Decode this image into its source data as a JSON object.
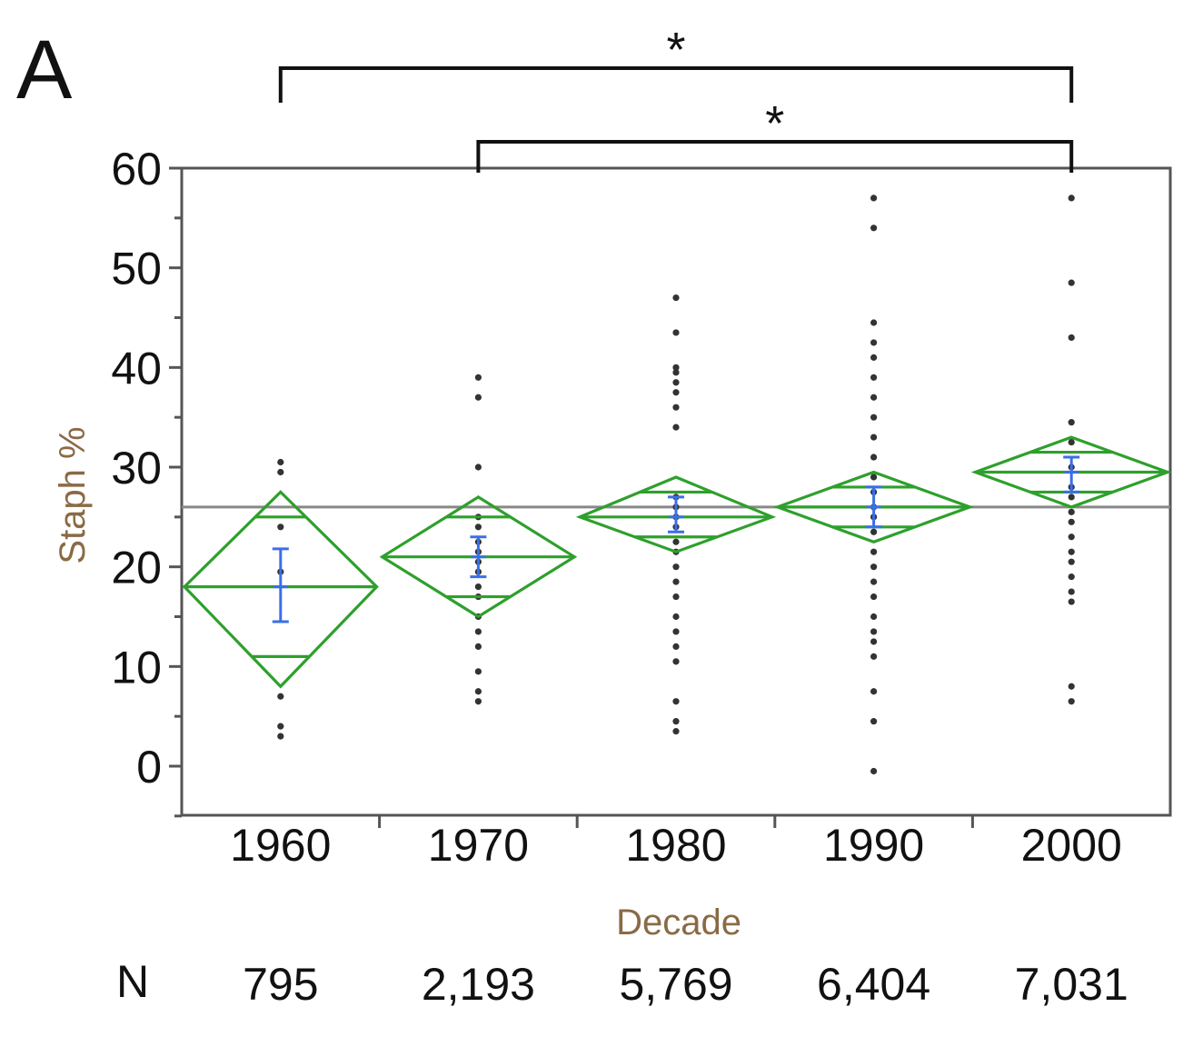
{
  "panel_label": "A",
  "colors": {
    "diamond": "#2ea02c",
    "error_bar": "#3b6fe8",
    "point": "#333333",
    "grand_mean": "#888888",
    "frame": "#555555",
    "axis_title": "#8a6a45"
  },
  "chart_data": {
    "type": "scatter",
    "subtype": "means-diamonds",
    "xlabel": "Decade",
    "ylabel": "Staph %",
    "ylim": [
      -5,
      60
    ],
    "yticks": [
      0,
      10,
      20,
      30,
      40,
      50,
      60
    ],
    "categories": [
      "1960",
      "1970",
      "1980",
      "1990",
      "2000"
    ],
    "grand_mean": 26,
    "groups": [
      {
        "category": "1960",
        "mean": 18,
        "ci": [
          8,
          27.5
        ],
        "overlap": [
          11,
          25
        ],
        "error_bar": [
          14.5,
          21.8
        ],
        "points": [
          3,
          4,
          7,
          19.5,
          24,
          29.5,
          30.5
        ]
      },
      {
        "category": "1970",
        "mean": 21,
        "ci": [
          15,
          27
        ],
        "overlap": [
          17,
          25
        ],
        "error_bar": [
          19,
          23
        ],
        "points": [
          6.5,
          7.5,
          9.5,
          12,
          13.5,
          15,
          17,
          18,
          19.5,
          20.5,
          21.5,
          22.5,
          24,
          25,
          30,
          37,
          39
        ]
      },
      {
        "category": "1980",
        "mean": 25,
        "ci": [
          21.5,
          29
        ],
        "overlap": [
          23,
          27.5
        ],
        "error_bar": [
          23.5,
          27
        ],
        "points": [
          3.5,
          4.5,
          6.5,
          10.5,
          12,
          13.5,
          15,
          17,
          18.5,
          20,
          21.5,
          22.5,
          24,
          25,
          26,
          27,
          34,
          36,
          37.5,
          38.5,
          39.5,
          40,
          43.5,
          47
        ]
      },
      {
        "category": "1990",
        "mean": 26,
        "ci": [
          22.5,
          29.5
        ],
        "overlap": [
          24,
          28
        ],
        "error_bar": [
          24,
          28
        ],
        "points": [
          -0.5,
          4.5,
          7.5,
          11,
          12.5,
          13.5,
          15,
          17,
          18.5,
          20,
          21.5,
          23.5,
          25,
          26,
          27.5,
          29,
          31,
          33,
          35,
          37,
          39,
          41,
          42.5,
          44.5,
          54,
          57
        ]
      },
      {
        "category": "2000",
        "mean": 29.5,
        "ci": [
          26,
          33
        ],
        "overlap": [
          27.5,
          31.5
        ],
        "error_bar": [
          27.5,
          31
        ],
        "points": [
          6.5,
          8,
          16.5,
          17.5,
          19,
          20.5,
          21.5,
          23,
          24.5,
          25.5,
          27,
          28,
          30,
          32.5,
          34.5,
          43,
          48.5,
          57
        ]
      }
    ],
    "n_label": "N",
    "n_values": [
      "795",
      "2,193",
      "5,769",
      "6,404",
      "7,031"
    ],
    "significance": [
      {
        "from": "1960",
        "to": "2000",
        "label": "*"
      },
      {
        "from": "1970",
        "to": "2000",
        "label": "*"
      }
    ]
  }
}
